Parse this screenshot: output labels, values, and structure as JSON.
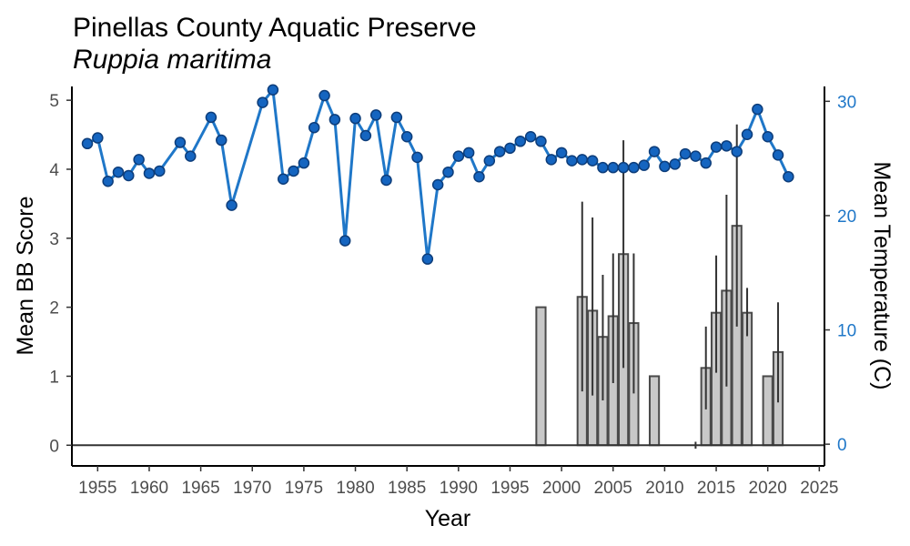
{
  "chart_data": {
    "type": "bar+line",
    "title": "Pinellas County Aquatic Preserve",
    "subtitle": "Ruppia maritima",
    "xlabel": "Year",
    "ylabel": "Mean BB Score",
    "ylabel_right": "Mean Temperature (C)",
    "xlim": [
      1952.5,
      2025.5
    ],
    "ylim": [
      -0.3,
      5.2
    ],
    "ylim_right": [
      -1.9,
      31.3
    ],
    "x_ticks": [
      1955,
      1960,
      1965,
      1970,
      1975,
      1980,
      1985,
      1990,
      1995,
      2000,
      2005,
      2010,
      2015,
      2020,
      2025
    ],
    "x_tick_labels": [
      "1955",
      "1960",
      "1965",
      "1970",
      "1975",
      "1980",
      "1985",
      "1990",
      "1995",
      "2000",
      "2005",
      "2010",
      "2015",
      "2020",
      "2025"
    ],
    "y_ticks": [
      0,
      1,
      2,
      3,
      4,
      5
    ],
    "y_tick_labels": [
      "0",
      "1",
      "2",
      "3",
      "4",
      "5"
    ],
    "y_ticks_right": [
      0,
      10,
      20,
      30
    ],
    "y_tick_labels_right": [
      "0",
      "10",
      "20",
      "30"
    ],
    "grid": false,
    "colors": {
      "bar_fill": "#c8c8c8",
      "bar_stroke": "#4a4a4a",
      "line": "#1f77c8",
      "point_fill": "#1565c0",
      "point_stroke": "#0d3d7a",
      "right_axis": "#1f77c8"
    },
    "bars": [
      {
        "x": 1998,
        "value": 2.0,
        "err_low": null,
        "err_high": null
      },
      {
        "x": 2002,
        "value": 2.15,
        "err_low": 0.78,
        "err_high": 3.53
      },
      {
        "x": 2003,
        "value": 1.95,
        "err_low": 0.72,
        "err_high": 3.3
      },
      {
        "x": 2004,
        "value": 1.57,
        "err_low": 0.65,
        "err_high": 2.47
      },
      {
        "x": 2005,
        "value": 1.87,
        "err_low": 0.9,
        "err_high": 2.78
      },
      {
        "x": 2006,
        "value": 2.77,
        "err_low": 1.12,
        "err_high": 4.42
      },
      {
        "x": 2007,
        "value": 1.77,
        "err_low": 0.75,
        "err_high": 2.78
      },
      {
        "x": 2009,
        "value": 1.0,
        "err_low": null,
        "err_high": null
      },
      {
        "x": 2013,
        "value": 0.0,
        "err_low": -0.05,
        "err_high": 0.05
      },
      {
        "x": 2014,
        "value": 1.12,
        "err_low": 0.52,
        "err_high": 1.72
      },
      {
        "x": 2015,
        "value": 1.92,
        "err_low": 1.05,
        "err_high": 2.75
      },
      {
        "x": 2016,
        "value": 2.24,
        "err_low": 0.85,
        "err_high": 3.63
      },
      {
        "x": 2017,
        "value": 3.18,
        "err_low": 1.72,
        "err_high": 4.65
      },
      {
        "x": 2018,
        "value": 1.92,
        "err_low": 1.58,
        "err_high": 2.28
      },
      {
        "x": 2020,
        "value": 1.0,
        "err_low": null,
        "err_high": null
      },
      {
        "x": 2021,
        "value": 1.35,
        "err_low": 0.62,
        "err_high": 2.07
      }
    ],
    "line_series": {
      "x": [
        1954,
        1955,
        1956,
        1957,
        1958,
        1959,
        1960,
        1961,
        1963,
        1964,
        1966,
        1967,
        1968,
        1971,
        1972,
        1973,
        1974,
        1975,
        1976,
        1977,
        1978,
        1979,
        1980,
        1981,
        1982,
        1983,
        1984,
        1985,
        1986,
        1987,
        1988,
        1989,
        1990,
        1991,
        1992,
        1993,
        1994,
        1995,
        1996,
        1997,
        1998,
        1999,
        2000,
        2001,
        2002,
        2003,
        2004,
        2005,
        2006,
        2007,
        2008,
        2009,
        2010,
        2011,
        2012,
        2013,
        2014,
        2015,
        2016,
        2017,
        2018,
        2019,
        2020,
        2021,
        2022
      ],
      "y": [
        26.3,
        26.8,
        23.0,
        23.8,
        23.5,
        24.9,
        23.7,
        23.9,
        26.4,
        25.2,
        28.6,
        26.6,
        20.9,
        29.9,
        31.0,
        23.2,
        23.9,
        24.6,
        27.7,
        30.5,
        28.4,
        17.8,
        28.5,
        27.0,
        28.8,
        23.1,
        28.6,
        26.9,
        25.1,
        16.2,
        22.7,
        23.8,
        25.2,
        25.5,
        23.4,
        24.8,
        25.6,
        25.9,
        26.5,
        26.9,
        26.5,
        24.9,
        25.5,
        24.8,
        24.9,
        24.8,
        24.2,
        24.2,
        24.2,
        24.2,
        24.4,
        25.6,
        24.3,
        24.5,
        25.4,
        25.2,
        24.6,
        26.0,
        26.1,
        25.6,
        27.1,
        29.3,
        26.9,
        25.3,
        23.4
      ]
    }
  }
}
